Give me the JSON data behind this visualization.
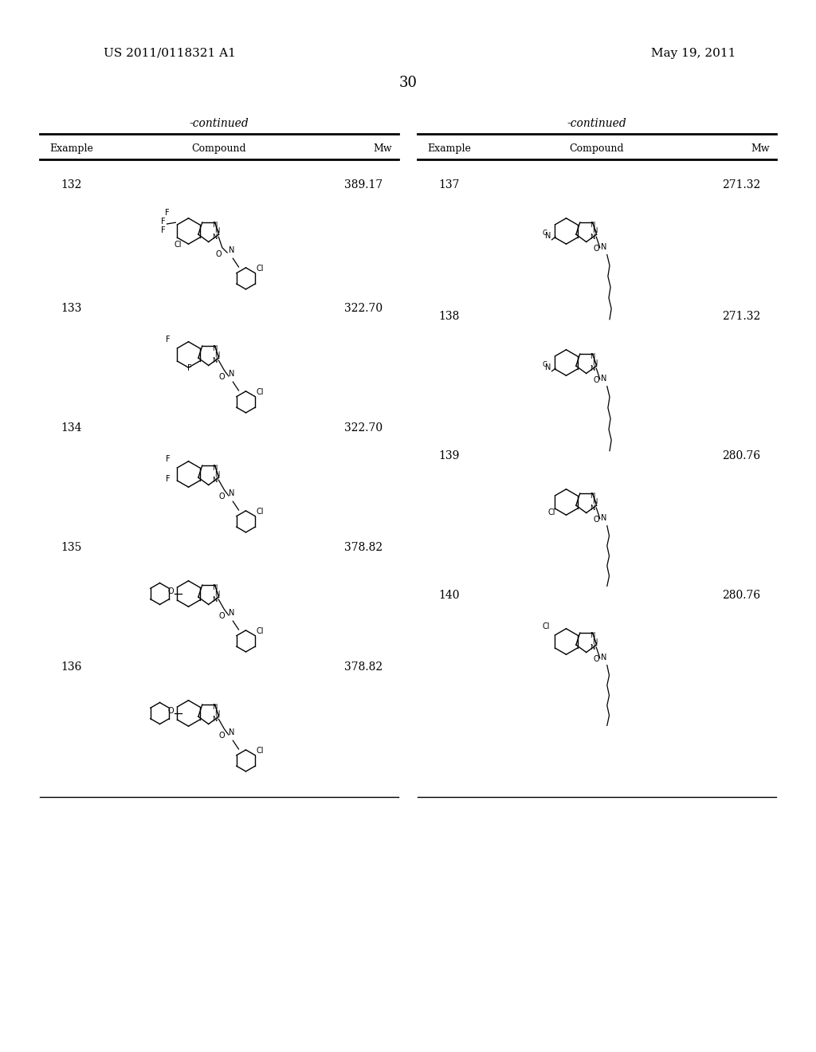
{
  "page_number": "30",
  "patent_number": "US 2011/0118321 A1",
  "patent_date": "May 19, 2011",
  "background_color": "#ffffff",
  "text_color": "#000000",
  "table_headers": [
    "Example",
    "Compound",
    "Mw"
  ],
  "continued_label": "-continued",
  "compounds": [
    {
      "example": "132",
      "mw": "389.17",
      "col": 0,
      "row": 0
    },
    {
      "example": "133",
      "mw": "322.70",
      "col": 0,
      "row": 1
    },
    {
      "example": "134",
      "mw": "322.70",
      "col": 0,
      "row": 2
    },
    {
      "example": "135",
      "mw": "378.82",
      "col": 0,
      "row": 3
    },
    {
      "example": "136",
      "mw": "378.82",
      "col": 0,
      "row": 4
    },
    {
      "example": "137",
      "mw": "271.32",
      "col": 1,
      "row": 0
    },
    {
      "example": "138",
      "mw": "271.32",
      "col": 1,
      "row": 1
    },
    {
      "example": "139",
      "mw": "280.76",
      "col": 1,
      "row": 2
    },
    {
      "example": "140",
      "mw": "280.76",
      "col": 1,
      "row": 3
    }
  ]
}
